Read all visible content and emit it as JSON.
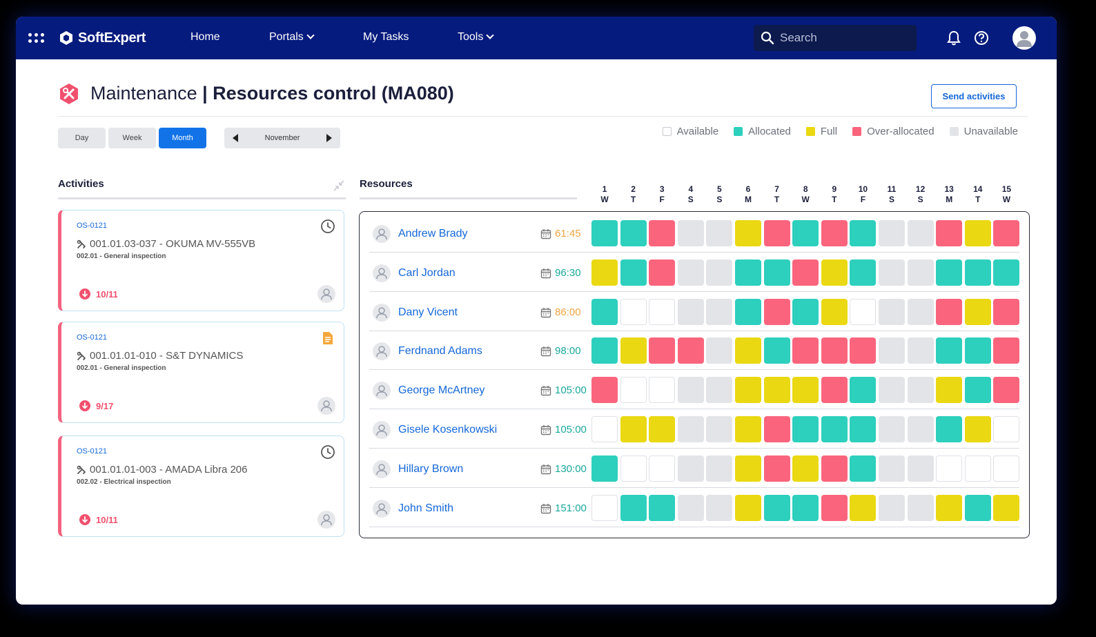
{
  "nav": {
    "logo": "SoftExpert",
    "items": [
      {
        "label": "Home",
        "dropdown": false
      },
      {
        "label": "Portals",
        "dropdown": true
      },
      {
        "label": "My Tasks",
        "dropdown": false
      },
      {
        "label": "Tools",
        "dropdown": true
      }
    ],
    "search_placeholder": "Search"
  },
  "page": {
    "module": "Maintenance",
    "separator": " | ",
    "title": "Resources control (MA080)",
    "send_button": "Send activities"
  },
  "views": {
    "buttons": [
      "Day",
      "Week",
      "Month"
    ],
    "active": "Month",
    "period": "November"
  },
  "legend": [
    {
      "label": "Available",
      "color": "#ffffff"
    },
    {
      "label": "Allocated",
      "color": "#2dcfbd"
    },
    {
      "label": "Full",
      "color": "#ead812"
    },
    {
      "label": "Over-allocated",
      "color": "#fa657d"
    },
    {
      "label": "Unavailable",
      "color": "#e3e4e8"
    }
  ],
  "activities": {
    "title": "Activities",
    "cards": [
      {
        "code": "OS-0121",
        "name": "001.01.03-037 - OKUMA MV-555VB",
        "sub": "002.01 - General inspection",
        "date": "10/11",
        "status_icon": "clock-icon"
      },
      {
        "code": "OS-0121",
        "name": "001.01.01-010 - S&T DYNAMICS",
        "sub": "002.01 - General inspection",
        "date": "9/17",
        "status_icon": "document-icon"
      },
      {
        "code": "OS-0121",
        "name": "001.01.01-003 - AMADA Libra 206",
        "sub": "002.02 - Electrical inspection",
        "date": "10/11",
        "status_icon": "clock-icon"
      }
    ]
  },
  "resources": {
    "title": "Resources",
    "days": [
      {
        "num": "1",
        "dow": "W"
      },
      {
        "num": "2",
        "dow": "T"
      },
      {
        "num": "3",
        "dow": "F"
      },
      {
        "num": "4",
        "dow": "S"
      },
      {
        "num": "5",
        "dow": "S"
      },
      {
        "num": "6",
        "dow": "M"
      },
      {
        "num": "7",
        "dow": "T"
      },
      {
        "num": "8",
        "dow": "W"
      },
      {
        "num": "9",
        "dow": "T"
      },
      {
        "num": "10",
        "dow": "F"
      },
      {
        "num": "11",
        "dow": "S"
      },
      {
        "num": "12",
        "dow": "S"
      },
      {
        "num": "13",
        "dow": "M"
      },
      {
        "num": "14",
        "dow": "T"
      },
      {
        "num": "15",
        "dow": "W"
      }
    ],
    "rows": [
      {
        "name": "Andrew Brady",
        "hours": "61:45",
        "hours_color": "#f0a441",
        "cells": [
          "allocated",
          "allocated",
          "over",
          "unavailable",
          "unavailable",
          "full",
          "over",
          "allocated",
          "over",
          "allocated",
          "unavailable",
          "unavailable",
          "over",
          "full",
          "over"
        ]
      },
      {
        "name": "Carl Jordan",
        "hours": "96:30",
        "hours_color": "#1aa89a",
        "cells": [
          "full",
          "allocated",
          "over",
          "unavailable",
          "unavailable",
          "allocated",
          "allocated",
          "over",
          "full",
          "allocated",
          "unavailable",
          "unavailable",
          "allocated",
          "allocated",
          "allocated"
        ]
      },
      {
        "name": "Dany Vicent",
        "hours": "86:00",
        "hours_color": "#f0a441",
        "cells": [
          "allocated",
          "available",
          "available",
          "unavailable",
          "unavailable",
          "allocated",
          "over",
          "allocated",
          "full",
          "available",
          "unavailable",
          "unavailable",
          "over",
          "full",
          "over"
        ]
      },
      {
        "name": "Ferdnand Adams",
        "hours": "98:00",
        "hours_color": "#1aa89a",
        "cells": [
          "allocated",
          "full",
          "over",
          "over",
          "unavailable",
          "full",
          "allocated",
          "over",
          "over",
          "over",
          "unavailable",
          "unavailable",
          "allocated",
          "allocated",
          "over"
        ]
      },
      {
        "name": "George McArtney",
        "hours": "105:00",
        "hours_color": "#1aa89a",
        "cells": [
          "over",
          "available",
          "available",
          "unavailable",
          "unavailable",
          "full",
          "full",
          "full",
          "over",
          "allocated",
          "unavailable",
          "unavailable",
          "full",
          "allocated",
          "over"
        ]
      },
      {
        "name": "Gisele Kosenkowski",
        "hours": "105:00",
        "hours_color": "#1aa89a",
        "cells": [
          "available",
          "full",
          "full",
          "unavailable",
          "unavailable",
          "full",
          "over",
          "allocated",
          "allocated",
          "allocated",
          "unavailable",
          "unavailable",
          "allocated",
          "full",
          "available"
        ]
      },
      {
        "name": "Hillary Brown",
        "hours": "130:00",
        "hours_color": "#1aa89a",
        "cells": [
          "allocated",
          "available",
          "available",
          "unavailable",
          "unavailable",
          "full",
          "over",
          "full",
          "over",
          "allocated",
          "unavailable",
          "unavailable",
          "available",
          "available",
          "available"
        ]
      },
      {
        "name": "John Smith",
        "hours": "151:00",
        "hours_color": "#1aa89a",
        "cells": [
          "available",
          "allocated",
          "allocated",
          "unavailable",
          "unavailable",
          "full",
          "allocated",
          "allocated",
          "over",
          "full",
          "unavailable",
          "unavailable",
          "full",
          "allocated",
          "full"
        ]
      }
    ]
  }
}
